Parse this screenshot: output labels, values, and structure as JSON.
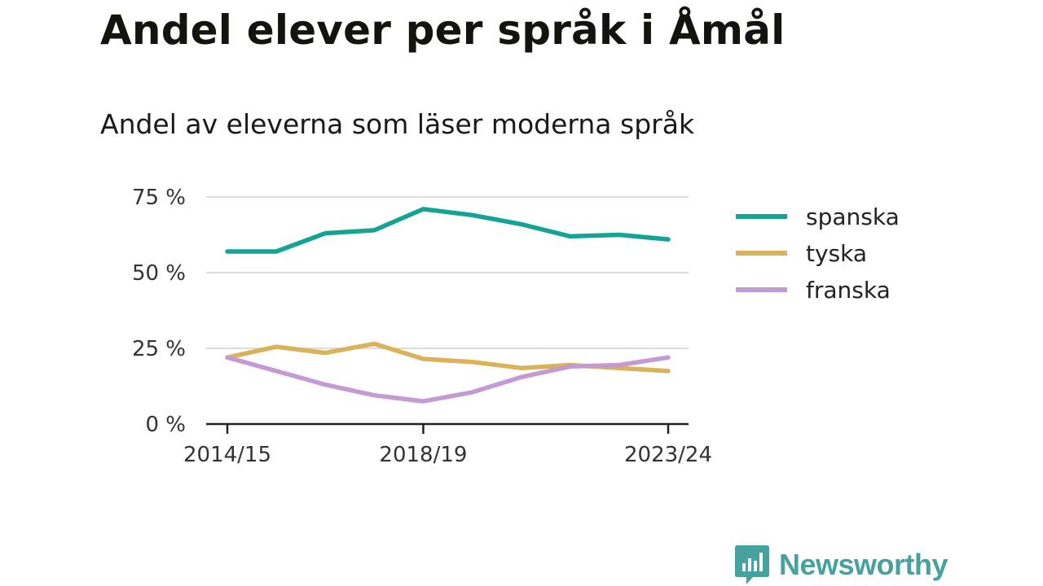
{
  "header": {
    "title": "Andel elever per språk i Åmål",
    "subtitle": "Andel av eleverna som läser moderna språk"
  },
  "brand": {
    "name": "Newsworthy",
    "logo_icon": "bar-chart-badge-icon",
    "color": "#45a29e"
  },
  "chart_data": {
    "type": "line",
    "x": [
      "2014/15",
      "2015/16",
      "2016/17",
      "2017/18",
      "2018/19",
      "2019/20",
      "2020/21",
      "2021/22",
      "2022/23",
      "2023/24"
    ],
    "x_tick_labels": [
      "2014/15",
      "2018/19",
      "2023/24"
    ],
    "y_ticks": [
      0,
      25,
      50,
      75
    ],
    "y_tick_labels": [
      "0 %",
      "25 %",
      "50 %",
      "75 %"
    ],
    "ylim": [
      0,
      75
    ],
    "grid": "horizontal",
    "legend": "right",
    "series": [
      {
        "name": "spanska",
        "color": "#13a496",
        "values": [
          57,
          57,
          63,
          64,
          71,
          69,
          66,
          62,
          62.5,
          61
        ]
      },
      {
        "name": "tyska",
        "color": "#d9b25a",
        "values": [
          22,
          25.5,
          23.5,
          26.5,
          21.5,
          20.5,
          18.5,
          19.5,
          18.5,
          17.5
        ]
      },
      {
        "name": "franska",
        "color": "#c39ad3",
        "values": [
          22,
          17.5,
          13,
          9.5,
          7.5,
          10.5,
          15.5,
          19,
          19.5,
          22
        ]
      }
    ]
  }
}
